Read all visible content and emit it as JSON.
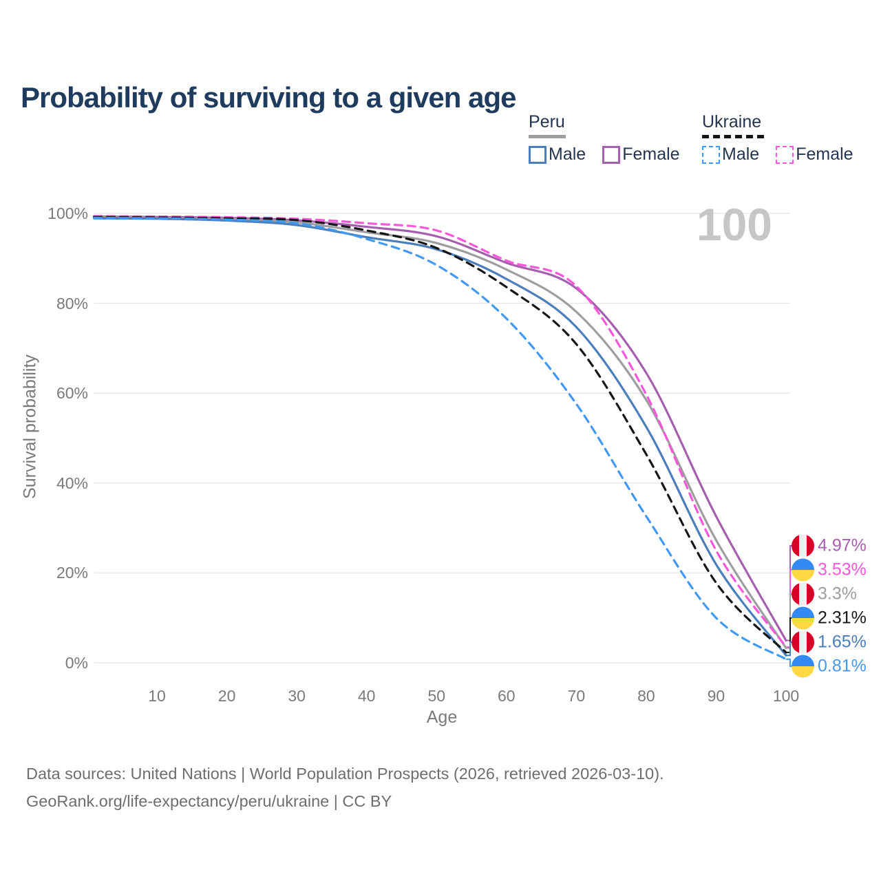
{
  "title": "Probability of surviving to a given age",
  "legend": {
    "peru": {
      "title": "Peru",
      "male": "Male",
      "female": "Female"
    },
    "ukraine": {
      "title": "Ukraine",
      "male": "Male",
      "female": "Female"
    }
  },
  "hover_age_indicator": "100",
  "footer": {
    "line1": "Data sources: United Nations | World Population Prospects (2026, retrieved 2026-03-10).",
    "line2": "GeoRank.org/life-expectancy/peru/ukraine | CC BY"
  },
  "colors": {
    "title_text": "#1f3b5e",
    "legend_text": "#24364f",
    "axis_text": "#7a7a7a",
    "grid_line": "#e9e9e9",
    "watermark": "#c6c6c6",
    "footer_text": "#6e6e6e",
    "peru_flag_red": "#d80027",
    "peru_flag_white": "#efefef",
    "ukraine_flag_blue": "#338af3",
    "ukraine_flag_yellow": "#ffd944"
  },
  "chart_data": {
    "type": "line",
    "title": "Probability of surviving to a given age",
    "xlabel": "Age",
    "ylabel": "Survival probability",
    "xlim": [
      0,
      100
    ],
    "ylim": [
      0,
      100
    ],
    "grid": "horizontal",
    "legend_position": "top-right",
    "x": [
      1,
      10,
      20,
      30,
      40,
      50,
      60,
      70,
      80,
      90,
      100
    ],
    "x_ticks": [
      {
        "value": 10,
        "label": "10"
      },
      {
        "value": 20,
        "label": "20"
      },
      {
        "value": 30,
        "label": "30"
      },
      {
        "value": 40,
        "label": "40"
      },
      {
        "value": 50,
        "label": "50"
      },
      {
        "value": 60,
        "label": "60"
      },
      {
        "value": 70,
        "label": "70"
      },
      {
        "value": 80,
        "label": "80"
      },
      {
        "value": 90,
        "label": "90"
      },
      {
        "value": 100,
        "label": "100"
      }
    ],
    "y_ticks": [
      {
        "value": 100,
        "label": "100%"
      },
      {
        "value": 80,
        "label": "80%"
      },
      {
        "value": 60,
        "label": "60%"
      },
      {
        "value": 40,
        "label": "40%"
      },
      {
        "value": 20,
        "label": "20%"
      },
      {
        "value": 0,
        "label": "0%"
      }
    ],
    "series": [
      {
        "name": "Peru Female",
        "country": "Peru",
        "sex": "Female",
        "style": "solid",
        "color": "#a55fae",
        "flag": "peru",
        "end_label": "4.97%",
        "values": [
          99.3,
          99.2,
          99.0,
          98.45,
          97.0,
          94.9,
          89.0,
          83.3,
          64.5,
          32.6,
          4.97
        ]
      },
      {
        "name": "Ukraine Female",
        "country": "Ukraine",
        "sex": "Female",
        "style": "dashed",
        "color": "#f857dc",
        "flag": "ukraine",
        "end_label": "3.53%",
        "values": [
          99.4,
          99.3,
          99.15,
          98.8,
          97.8,
          96.2,
          89.5,
          83.8,
          59.7,
          25.0,
          3.53
        ]
      },
      {
        "name": "Peru",
        "country": "Peru",
        "sex": "Both",
        "style": "solid",
        "color": "#9e9e9e",
        "flag": "peru",
        "end_label": "3.3%",
        "values": [
          99.1,
          99.0,
          98.7,
          98.0,
          95.8,
          93.4,
          87.5,
          78.1,
          58.5,
          27.3,
          3.3
        ]
      },
      {
        "name": "Ukraine",
        "country": "Ukraine",
        "sex": "Both",
        "style": "dashed",
        "color": "#161616",
        "flag": "ukraine",
        "end_label": "2.31%",
        "values": [
          99.2,
          99.1,
          98.9,
          98.5,
          96.2,
          92.3,
          83.6,
          70.9,
          46.4,
          17.8,
          2.31
        ]
      },
      {
        "name": "Peru Male",
        "country": "Peru",
        "sex": "Male",
        "style": "solid",
        "color": "#4a7ebc",
        "flag": "peru",
        "end_label": "1.65%",
        "values": [
          98.9,
          98.8,
          98.4,
          97.4,
          94.7,
          92.0,
          85.4,
          74.7,
          52.5,
          21.9,
          1.65
        ]
      },
      {
        "name": "Ukraine Male",
        "country": "Ukraine",
        "sex": "Male",
        "style": "dashed",
        "color": "#4199f2",
        "flag": "ukraine",
        "end_label": "0.81%",
        "values": [
          99.0,
          98.9,
          98.6,
          97.8,
          94.3,
          88.5,
          76.6,
          57.6,
          32.6,
          10.0,
          0.81
        ]
      }
    ]
  }
}
